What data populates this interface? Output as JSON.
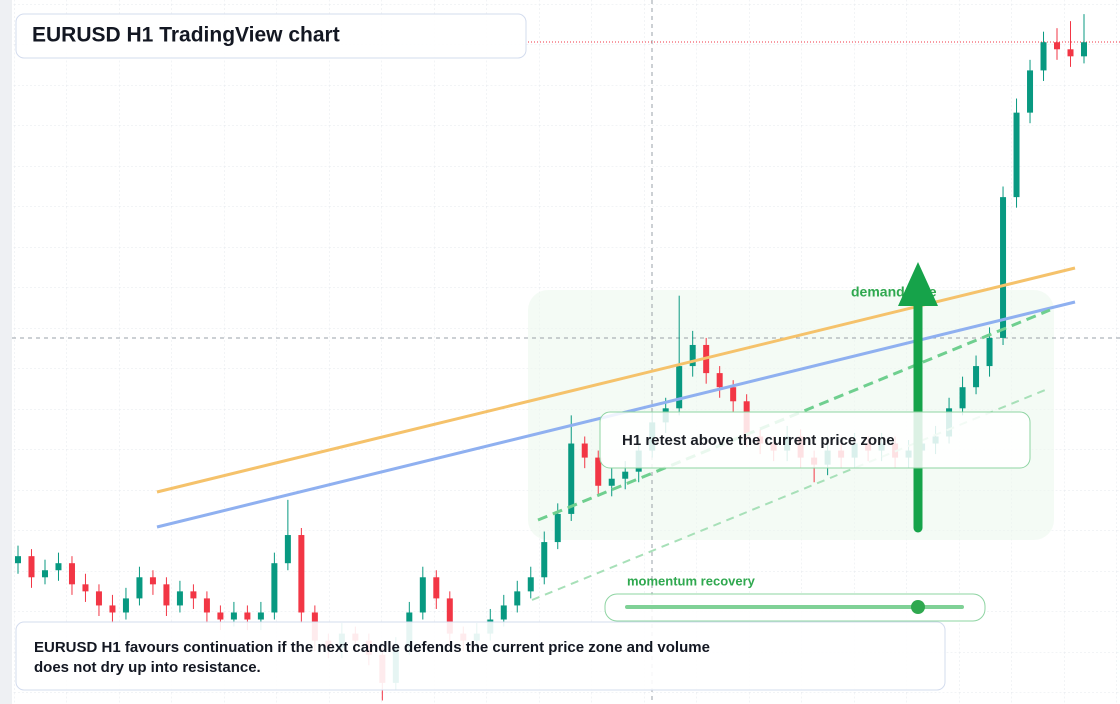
{
  "header": {
    "title": "EURUSD H1 TradingView chart"
  },
  "annotations": {
    "zone_label": "demand side",
    "retest": "H1 retest above the current price zone",
    "momentum": "momentum recovery"
  },
  "note": {
    "lines": [
      "EURUSD H1 favours continuation if the next candle defends the current price zone and volume",
      "does not dry up into resistance."
    ]
  },
  "chart_data": {
    "type": "candlestick",
    "up_color": "#089981",
    "down_color": "#f23645",
    "ylim": [
      0,
      100
    ],
    "candles": [
      [
        20,
        22.5,
        18.5,
        21
      ],
      [
        21,
        22,
        16.5,
        18
      ],
      [
        18,
        20.5,
        17,
        19
      ],
      [
        19,
        21.5,
        17.5,
        20
      ],
      [
        20,
        21,
        15.5,
        17
      ],
      [
        17,
        18.5,
        14.5,
        16
      ],
      [
        16,
        17,
        12.5,
        14
      ],
      [
        14,
        15.5,
        11.5,
        13
      ],
      [
        13,
        16.5,
        12,
        15
      ],
      [
        15,
        19.5,
        14,
        18
      ],
      [
        18,
        19,
        15.5,
        17
      ],
      [
        17,
        18,
        12.5,
        14
      ],
      [
        14,
        17.5,
        13,
        16
      ],
      [
        16,
        17,
        13.5,
        15
      ],
      [
        15,
        16,
        11.5,
        13
      ],
      [
        13,
        14,
        10.5,
        12
      ],
      [
        12,
        14.5,
        11,
        13
      ],
      [
        13,
        14,
        10.5,
        12
      ],
      [
        12,
        14.5,
        10.5,
        13
      ],
      [
        13,
        21.5,
        12,
        20
      ],
      [
        20,
        29,
        19,
        24
      ],
      [
        24,
        25,
        11.5,
        13
      ],
      [
        13,
        14,
        7.5,
        9
      ],
      [
        9,
        10,
        6.5,
        8
      ],
      [
        8,
        11.5,
        6.5,
        10
      ],
      [
        10,
        11,
        7.5,
        9
      ],
      [
        9,
        10,
        5.5,
        7
      ],
      [
        7,
        8,
        0.5,
        3
      ],
      [
        3,
        9.5,
        2,
        8
      ],
      [
        8,
        14.5,
        7,
        13
      ],
      [
        13,
        19.5,
        12,
        18
      ],
      [
        18,
        19,
        13.5,
        15
      ],
      [
        15,
        16,
        8.5,
        10
      ],
      [
        10,
        11,
        7.5,
        9
      ],
      [
        9,
        11.5,
        7.5,
        10
      ],
      [
        10,
        13.5,
        9,
        12
      ],
      [
        12,
        15.5,
        11,
        14
      ],
      [
        14,
        17.5,
        13,
        16
      ],
      [
        16,
        19.5,
        15,
        18
      ],
      [
        18,
        24.5,
        17,
        23
      ],
      [
        23,
        28.5,
        22,
        27
      ],
      [
        27,
        41,
        26,
        37
      ],
      [
        37,
        38,
        33.5,
        35
      ],
      [
        35,
        36,
        29.5,
        31
      ],
      [
        31,
        33.5,
        29.5,
        32
      ],
      [
        32,
        34.5,
        30.5,
        33
      ],
      [
        33,
        37.5,
        31.5,
        36
      ],
      [
        36,
        41.5,
        35,
        40
      ],
      [
        40,
        43.5,
        38.5,
        42
      ],
      [
        42,
        58,
        41,
        48
      ],
      [
        48,
        53,
        46.5,
        51
      ],
      [
        51,
        52,
        45.5,
        47
      ],
      [
        47,
        48,
        43.5,
        45
      ],
      [
        45,
        46,
        41.5,
        43
      ],
      [
        43,
        44,
        36.5,
        38
      ],
      [
        38,
        39,
        35.5,
        37
      ],
      [
        37,
        38,
        34.5,
        36
      ],
      [
        36,
        39.5,
        34.5,
        38
      ],
      [
        38,
        39,
        33.5,
        35
      ],
      [
        35,
        36,
        31.5,
        34
      ],
      [
        34,
        37.5,
        32.5,
        36
      ],
      [
        36,
        37,
        33.5,
        35
      ],
      [
        35,
        38.5,
        33.5,
        37
      ],
      [
        37,
        38,
        34.5,
        36
      ],
      [
        36,
        38.5,
        34.5,
        37
      ],
      [
        37,
        38,
        33.5,
        35
      ],
      [
        35,
        37.5,
        33.5,
        36
      ],
      [
        36,
        38.5,
        34.5,
        37
      ],
      [
        37,
        39.5,
        35.5,
        38
      ],
      [
        38,
        43.5,
        37,
        42
      ],
      [
        42,
        46.5,
        41,
        45
      ],
      [
        45,
        49.5,
        44,
        48
      ],
      [
        48,
        53.5,
        46.5,
        52
      ],
      [
        52,
        73.5,
        51,
        72
      ],
      [
        72,
        86,
        70.5,
        84
      ],
      [
        84,
        91.5,
        82.5,
        90
      ],
      [
        90,
        95.5,
        88.5,
        94
      ],
      [
        94,
        96,
        91.5,
        93
      ],
      [
        93,
        97,
        90.5,
        92
      ],
      [
        92,
        98,
        91,
        94
      ]
    ]
  }
}
